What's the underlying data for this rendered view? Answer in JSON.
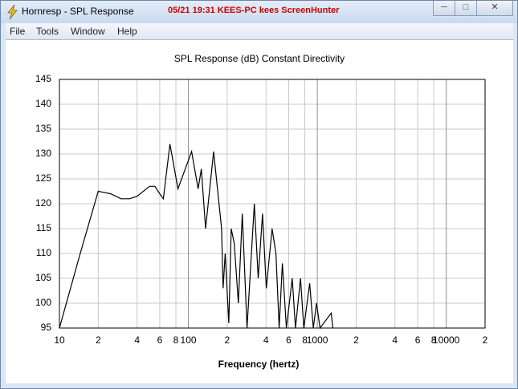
{
  "window": {
    "title": "Hornresp - SPL Response",
    "watermark": "05/21 19:31 KEES-PC kees ScreenHunter"
  },
  "menu": [
    "File",
    "Tools",
    "Window",
    "Help"
  ],
  "chart_data": {
    "type": "line",
    "title": "SPL Response (dB)   Constant Directivity",
    "x_label": "Frequency (hertz)",
    "xscale": "log",
    "grid": true,
    "color": "#000000",
    "xlim": [
      10,
      20000
    ],
    "ylim": [
      95,
      145
    ],
    "yticks": [
      95,
      100,
      105,
      110,
      115,
      120,
      125,
      130,
      135,
      140,
      145
    ],
    "xticks": [
      10,
      {
        "value": 20,
        "label": "2"
      },
      {
        "value": 40,
        "label": "4"
      },
      {
        "value": 60,
        "label": "6"
      },
      {
        "value": 80,
        "label": "8"
      },
      100,
      {
        "value": 200,
        "label": "2"
      },
      {
        "value": 400,
        "label": "4"
      },
      {
        "value": 600,
        "label": "6"
      },
      {
        "value": 800,
        "label": "8"
      },
      1000,
      {
        "value": 2000,
        "label": "2"
      },
      {
        "value": 4000,
        "label": "4"
      },
      {
        "value": 6000,
        "label": "6"
      },
      {
        "value": 8000,
        "label": "8"
      },
      10000,
      {
        "value": 20000,
        "label": "2"
      }
    ],
    "x": [
      10,
      14.5,
      20,
      25,
      30,
      35,
      40,
      50,
      55,
      60,
      64,
      72,
      83,
      106,
      119,
      126,
      136,
      157,
      181,
      186,
      193,
      206,
      215,
      227,
      244,
      262,
      285,
      325,
      348,
      376,
      402,
      446,
      478,
      506,
      536,
      576,
      639,
      677,
      741,
      786,
      873,
      930,
      985,
      1050,
      1282,
      1320
    ],
    "values": [
      95,
      110,
      122.5,
      122,
      121,
      121,
      121.5,
      123.5,
      123.5,
      122,
      121,
      132,
      123,
      130.5,
      123,
      127,
      115,
      130.5,
      115,
      103,
      110,
      96,
      115,
      112,
      100,
      118,
      95,
      120,
      105,
      118,
      103,
      115,
      110,
      95,
      108,
      95,
      105,
      95,
      105,
      95,
      104,
      95,
      100,
      95,
      98,
      95
    ]
  }
}
